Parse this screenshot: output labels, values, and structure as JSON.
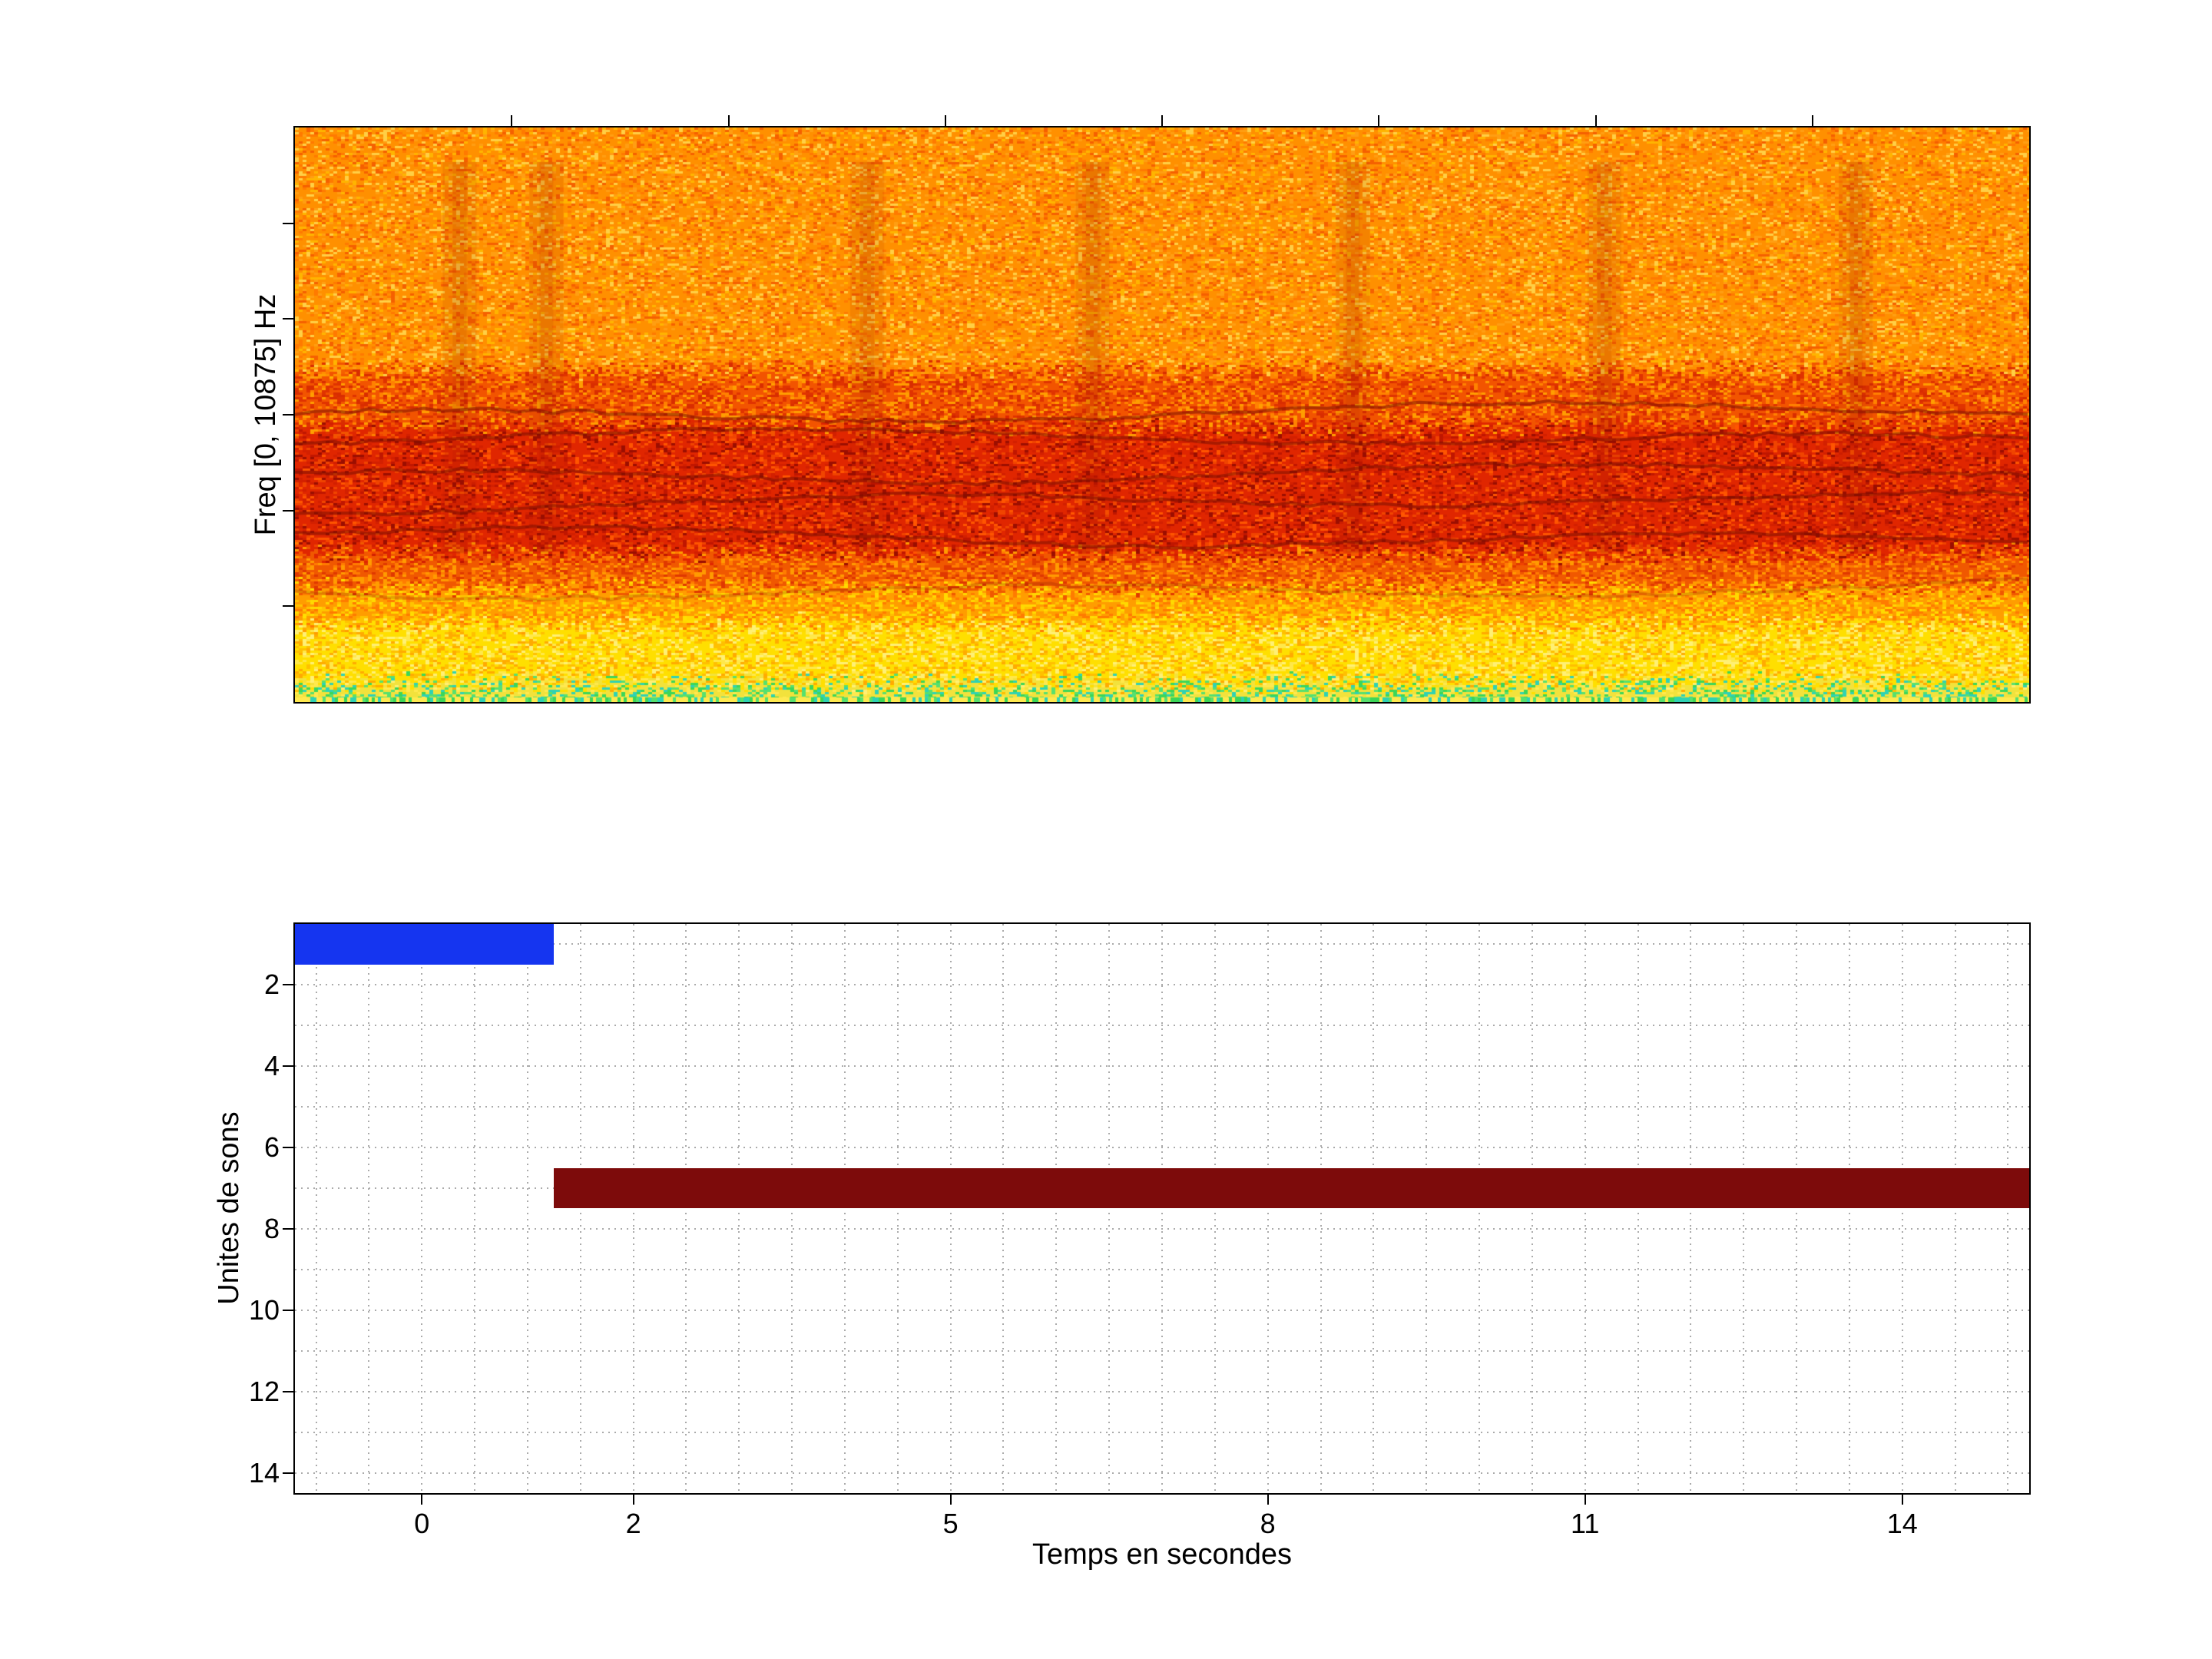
{
  "figure": {
    "background": "#ffffff",
    "axis_color": "#000000"
  },
  "chart_data": [
    {
      "id": "spectrogram",
      "type": "heatmap",
      "title": "",
      "ylabel": "Freq [0, 10875] Hz",
      "freq_range_hz": [
        0,
        10875
      ],
      "x_range_seconds": [
        -1.2,
        15.2
      ],
      "description": "Noisy audio spectrogram: orange high-frequency field, strong red energy band in the lower-middle with dark wavy harmonic tracks, yellow low-frequency band, thin green/cyan speckled floor at 0 Hz.",
      "bands": [
        {
          "name": "orange-high-freq",
          "from": 0.0,
          "to": 0.42,
          "base": "#ff9000",
          "speckles": [
            "#ffb400",
            "#ff7a00",
            "#ffcf45",
            "#f56000",
            "#ff9e12"
          ]
        },
        {
          "name": "upper-transition",
          "from": 0.42,
          "to": 0.52,
          "base": "#f25400",
          "speckles": [
            "#ff8200",
            "#e03300",
            "#ff9e00",
            "#d92d00"
          ]
        },
        {
          "name": "red-energy-band",
          "from": 0.52,
          "to": 0.74,
          "base": "#e02600",
          "speckles": [
            "#c01600",
            "#ff5500",
            "#9c0e00",
            "#f04400",
            "#d32000"
          ]
        },
        {
          "name": "lower-transition",
          "from": 0.74,
          "to": 0.8,
          "base": "#f05800",
          "speckles": [
            "#ff7d00",
            "#e03800",
            "#ff9b00"
          ]
        },
        {
          "name": "orange-yellow",
          "from": 0.8,
          "to": 0.86,
          "base": "#ff9d00",
          "speckles": [
            "#ffc400",
            "#ff7b00",
            "#ffd900"
          ]
        },
        {
          "name": "yellow-low-freq",
          "from": 0.86,
          "to": 0.965,
          "base": "#ffdf00",
          "speckles": [
            "#ffc000",
            "#fff075",
            "#ffab00",
            "#ffe84a"
          ]
        },
        {
          "name": "green-cyan-floor",
          "from": 0.965,
          "to": 1.01,
          "base": "#f2e23c",
          "speckles": [
            "#3cd658",
            "#2fd2b4",
            "#ffe94f",
            "#57e06e"
          ]
        }
      ],
      "harmonic_tracks_fraction": [
        0.495,
        0.545,
        0.6,
        0.655,
        0.71,
        0.8
      ],
      "track_color": "#7c1000",
      "vertical_smudges_fraction": [
        0.095,
        0.145,
        0.33,
        0.46,
        0.61,
        0.755,
        0.9
      ],
      "smudge_color": "rgba(150,20,0,0.10)"
    },
    {
      "id": "detections",
      "type": "bar",
      "orientation": "horizontal",
      "title": "",
      "xlabel": "Temps en secondes",
      "ylabel": "Unites de sons",
      "xlim": [
        -1.2,
        15.2
      ],
      "ylim_top_to_bottom": [
        0.5,
        14.5
      ],
      "xticks": [
        0,
        2,
        5,
        8,
        11,
        14
      ],
      "yticks": [
        2,
        4,
        6,
        8,
        10,
        12,
        14
      ],
      "grid": {
        "x_step": 0.5,
        "y_step": 1,
        "color": "#ababab",
        "style": "dotted"
      },
      "bars": [
        {
          "name": "unit-1-blue-segment",
          "unit_row": 1,
          "t_start": -1.2,
          "t_end": 1.25,
          "color": "#1535f0"
        },
        {
          "name": "unit-7-darkred-segment",
          "unit_row": 7,
          "t_start": 1.25,
          "t_end": 15.2,
          "color": "#7d0b0b"
        }
      ]
    }
  ]
}
